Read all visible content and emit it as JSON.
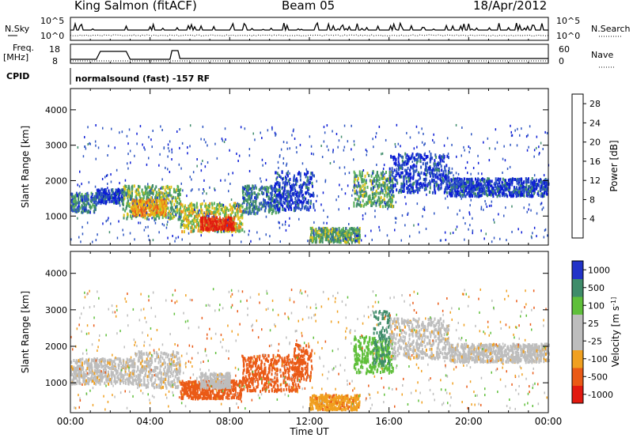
{
  "header": {
    "title": "King Salmon (fitACF)",
    "beam": "Beam 05",
    "date": "18/Apr/2012"
  },
  "noise_panel": {
    "left_label": "N.Sky",
    "left_ticks": [
      "10^5",
      "10^0"
    ],
    "right_label": "N.Search",
    "right_ticks": [
      "10^5",
      "10^0"
    ]
  },
  "freq_panel": {
    "left_label_top": "Freq.",
    "left_label_unit": "[MHz]",
    "left_ticks": [
      "18",
      "8"
    ],
    "right_label": "Nave",
    "right_ticks": [
      "60",
      "0"
    ]
  },
  "cpid": {
    "label": "CPID",
    "program": "normalsound (fast) -157 RF"
  },
  "colors": {
    "power_scale": [
      "#0b1bd6",
      "#2d55c2",
      "#3f8c6a",
      "#5ab05a",
      "#e2c21a",
      "#f08a1a",
      "#e8541a",
      "#e21a10"
    ],
    "velocity_scale": [
      "#e21a10",
      "#ea5a16",
      "#f0a020",
      "#bdbdbd",
      "#bdbdbd",
      "#5fbf3a",
      "#3f8c6a",
      "#2233c8"
    ]
  },
  "chart_data": [
    {
      "type": "heatmap",
      "title": "",
      "xlabel": "Time UT",
      "ylabel": "Slant Range [km]",
      "x_ticks": [
        "00:00",
        "04:00",
        "08:00",
        "12:00",
        "16:00",
        "20:00",
        "00:00"
      ],
      "xlim_hours": [
        0,
        24
      ],
      "y_ticks": [
        1000,
        2000,
        3000,
        4000
      ],
      "ylim": [
        180,
        4600
      ],
      "colorbar": {
        "label": "Power [dB]",
        "ticks": [
          4,
          8,
          12,
          16,
          20,
          24,
          28
        ],
        "range": [
          0,
          30
        ]
      },
      "echo_regions": [
        {
          "t0": 0.0,
          "t1": 1.3,
          "r0": 1150,
          "r1": 1700,
          "level": 8
        },
        {
          "t0": 1.3,
          "t1": 2.6,
          "r0": 1400,
          "r1": 1800,
          "level": 4
        },
        {
          "t0": 2.6,
          "t1": 5.5,
          "r0": 950,
          "r1": 1900,
          "level": 12
        },
        {
          "t0": 3.0,
          "t1": 4.8,
          "r0": 1050,
          "r1": 1500,
          "level": 20
        },
        {
          "t0": 5.5,
          "t1": 8.6,
          "r0": 600,
          "r1": 1400,
          "level": 16
        },
        {
          "t0": 6.5,
          "t1": 8.2,
          "r0": 650,
          "r1": 1000,
          "level": 28
        },
        {
          "t0": 8.6,
          "t1": 10.5,
          "r0": 1100,
          "r1": 1900,
          "level": 8
        },
        {
          "t0": 10.2,
          "t1": 12.2,
          "r0": 1200,
          "r1": 2300,
          "level": 4
        },
        {
          "t0": 12.0,
          "t1": 14.5,
          "r0": 300,
          "r1": 700,
          "level": 12
        },
        {
          "t0": 14.2,
          "t1": 16.2,
          "r0": 1300,
          "r1": 2300,
          "level": 12
        },
        {
          "t0": 16.0,
          "t1": 19.0,
          "r0": 1700,
          "r1": 2800,
          "level": 4
        },
        {
          "t0": 19.0,
          "t1": 24.0,
          "r0": 1600,
          "r1": 2100,
          "level": 4
        }
      ]
    },
    {
      "type": "heatmap",
      "title": "",
      "xlabel": "Time UT",
      "ylabel": "Slant Range [km]",
      "x_ticks": [
        "00:00",
        "04:00",
        "08:00",
        "12:00",
        "16:00",
        "20:00",
        "00:00"
      ],
      "xlim_hours": [
        0,
        24
      ],
      "y_ticks": [
        1000,
        2000,
        3000,
        4000
      ],
      "ylim": [
        180,
        4600
      ],
      "colorbar": {
        "label": "Velocity [m s^-1]",
        "ticks": [
          1000,
          500,
          100,
          25,
          -25,
          -100,
          -500,
          -1000
        ]
      },
      "echo_regions": [
        {
          "t0": 0.0,
          "t1": 3.2,
          "r0": 1000,
          "r1": 1700,
          "velocity": 0
        },
        {
          "t0": 3.2,
          "t1": 5.5,
          "r0": 900,
          "r1": 1900,
          "velocity": 0
        },
        {
          "t0": 5.5,
          "t1": 8.6,
          "r0": 600,
          "r1": 1100,
          "velocity": -300
        },
        {
          "t0": 6.5,
          "t1": 8.0,
          "r0": 900,
          "r1": 1300,
          "velocity": 60
        },
        {
          "t0": 8.6,
          "t1": 11.5,
          "r0": 800,
          "r1": 1800,
          "velocity": -150
        },
        {
          "t0": 11.2,
          "t1": 12.1,
          "r0": 1100,
          "r1": 2100,
          "velocity": -400
        },
        {
          "t0": 12.0,
          "t1": 14.5,
          "r0": 300,
          "r1": 700,
          "velocity": -80
        },
        {
          "t0": 14.2,
          "t1": 16.2,
          "r0": 1300,
          "r1": 2300,
          "velocity": 300
        },
        {
          "t0": 15.2,
          "t1": 16.0,
          "r0": 1500,
          "r1": 3000,
          "velocity": 800
        },
        {
          "t0": 16.0,
          "t1": 19.0,
          "r0": 1700,
          "r1": 2800,
          "velocity": 0
        },
        {
          "t0": 19.0,
          "t1": 24.0,
          "r0": 1600,
          "r1": 2100,
          "velocity": 0
        }
      ]
    }
  ]
}
